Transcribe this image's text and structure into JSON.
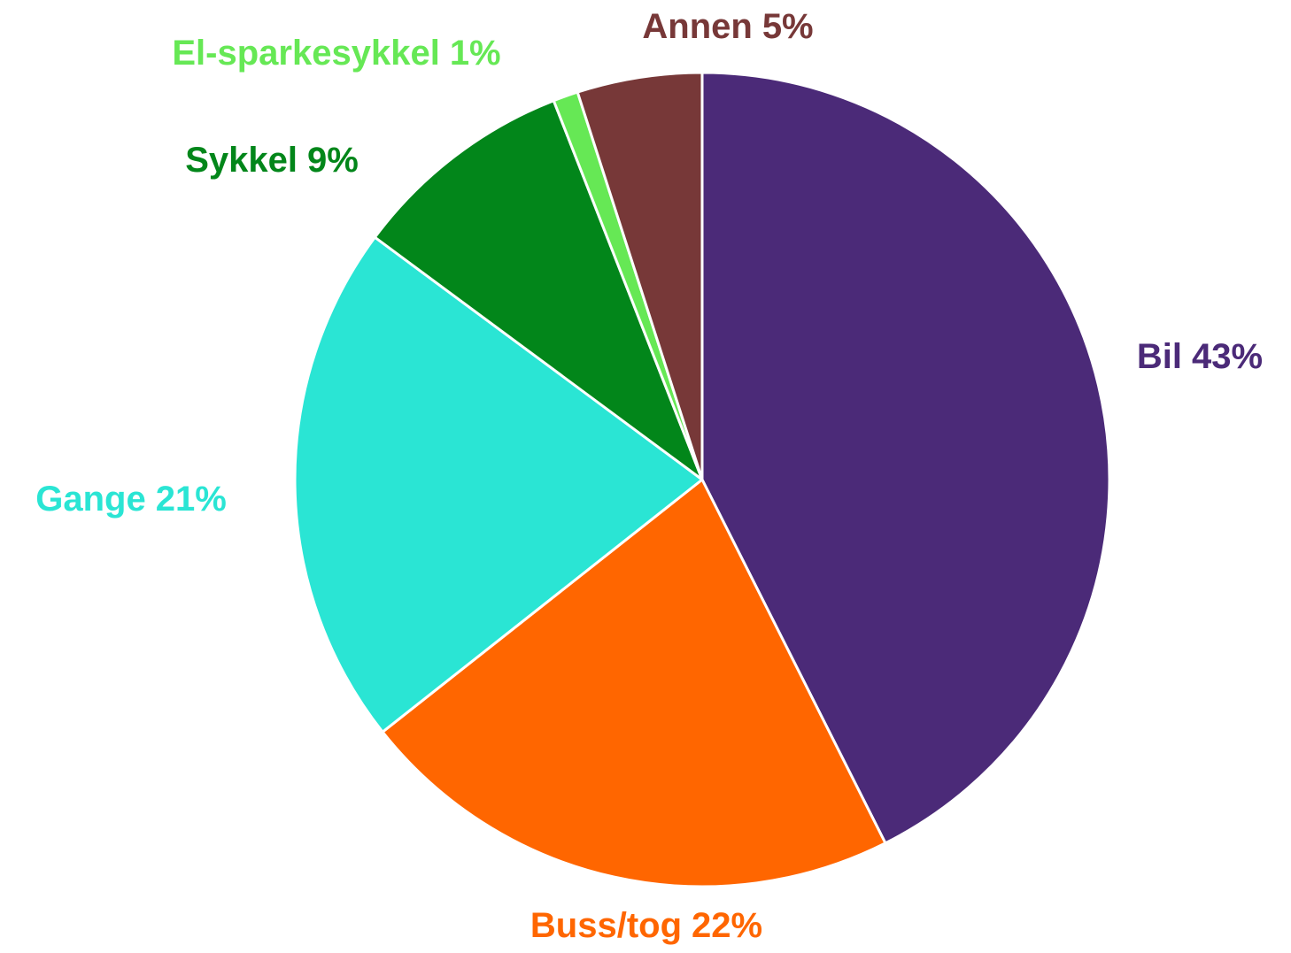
{
  "chart_data": {
    "type": "pie",
    "categories": [
      "Bil",
      "Buss/tog",
      "Gange",
      "Sykkel",
      "El-sparkesykkel",
      "Annen"
    ],
    "values": [
      43,
      22,
      21,
      9,
      1,
      5
    ],
    "value_labels": [
      "43%",
      "22%",
      "21%",
      "9%",
      "1%",
      "5%"
    ],
    "colors": [
      "#4b2a78",
      "#ff6600",
      "#2ae5d4",
      "#02861a",
      "#66e855",
      "#773838"
    ]
  }
}
